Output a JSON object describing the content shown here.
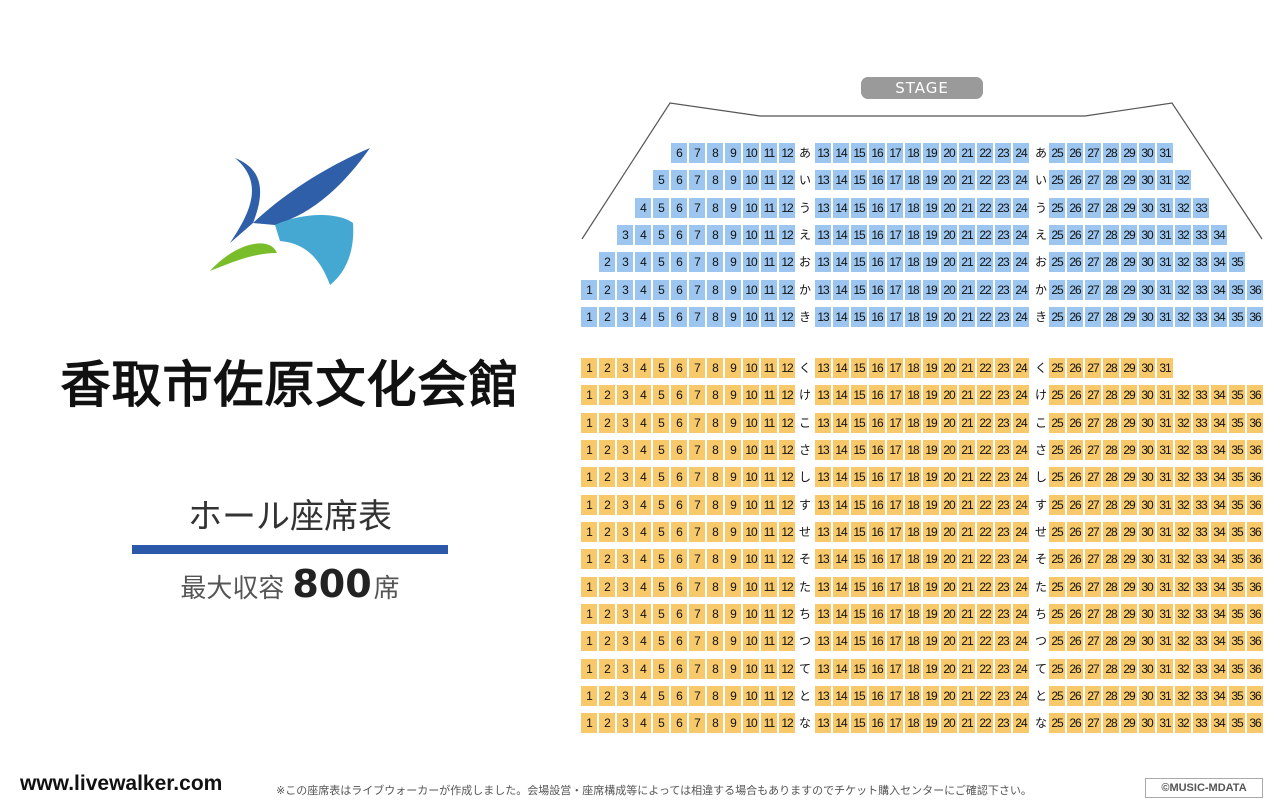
{
  "venue": {
    "name": "香取市佐原文化会館",
    "hall": "ホール座席表",
    "capacity_label": "最大収容",
    "capacity_value": "800",
    "capacity_unit": "席"
  },
  "stage_label": "STAGE",
  "colors": {
    "blue_seat": "#9cc6ef",
    "yellow_seat": "#f8c96a",
    "accent_bar": "#2b58a9",
    "stage": "#9a9a9a"
  },
  "blocks": [
    {
      "color": "blue",
      "rows": [
        {
          "label": "あ",
          "first": 6,
          "last": 31
        },
        {
          "label": "い",
          "first": 5,
          "last": 32
        },
        {
          "label": "う",
          "first": 4,
          "last": 33
        },
        {
          "label": "え",
          "first": 3,
          "last": 34
        },
        {
          "label": "お",
          "first": 2,
          "last": 35
        },
        {
          "label": "か",
          "first": 1,
          "last": 36
        },
        {
          "label": "き",
          "first": 1,
          "last": 36
        }
      ]
    },
    {
      "color": "yellow",
      "rows": [
        {
          "label": "く",
          "first": 1,
          "last": 31
        },
        {
          "label": "け",
          "first": 1,
          "last": 36
        },
        {
          "label": "こ",
          "first": 1,
          "last": 36
        },
        {
          "label": "さ",
          "first": 1,
          "last": 36
        },
        {
          "label": "し",
          "first": 1,
          "last": 36
        },
        {
          "label": "す",
          "first": 1,
          "last": 36
        },
        {
          "label": "せ",
          "first": 1,
          "last": 36
        },
        {
          "label": "そ",
          "first": 1,
          "last": 36
        },
        {
          "label": "た",
          "first": 1,
          "last": 36
        },
        {
          "label": "ち",
          "first": 1,
          "last": 36
        },
        {
          "label": "つ",
          "first": 1,
          "last": 36
        },
        {
          "label": "て",
          "first": 1,
          "last": 36
        },
        {
          "label": "と",
          "first": 1,
          "last": 36
        },
        {
          "label": "な",
          "first": 1,
          "last": 36
        }
      ]
    }
  ],
  "footer": {
    "site": "www.livewalker.com",
    "note": "※この座席表はライブウォーカーが作成しました。会場設営・座席構成等によっては相違する場合もありますのでチケット購入センターにご確認下さい。",
    "credit": "©MUSIC-MDATA"
  }
}
